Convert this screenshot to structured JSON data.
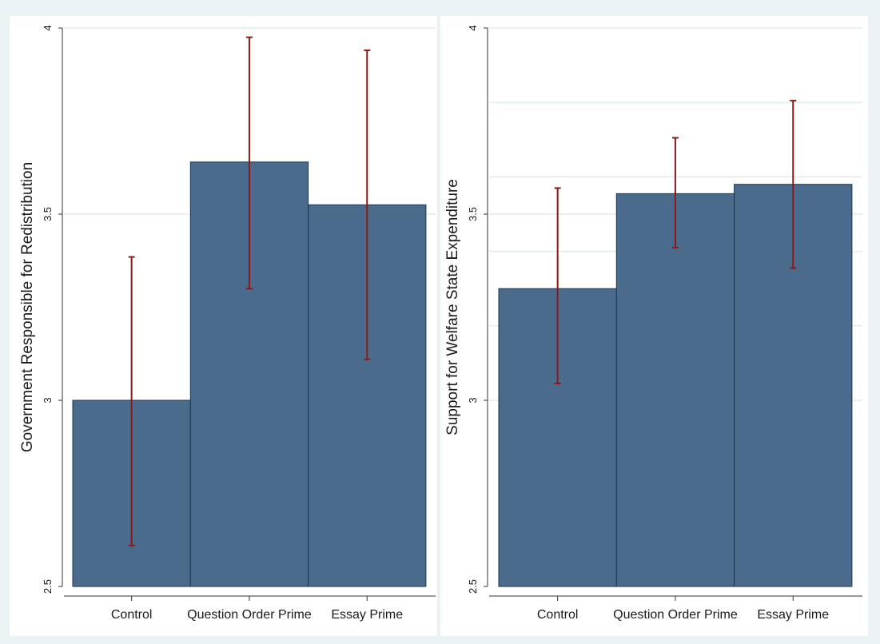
{
  "chart_data": [
    {
      "type": "bar",
      "ylabel": "Government Responsible for Redistribution",
      "xlabel": "",
      "categories": [
        "Control",
        "Question Order Prime",
        "Essay Prime"
      ],
      "values": [
        3.0,
        3.64,
        3.525
      ],
      "error_low": [
        2.61,
        3.3,
        3.11
      ],
      "error_high": [
        3.385,
        3.975,
        3.94
      ],
      "ylim": [
        2.5,
        4.0
      ],
      "yticks": [
        "2.5",
        "3",
        "3.5",
        "4"
      ],
      "ytick_values": [
        2.5,
        3.0,
        3.5,
        4.0
      ],
      "grid_values": [
        3.5,
        4.0
      ],
      "bar_color": "#4a6b8c",
      "bar_edge_color": "#1a3550",
      "error_color": "#8b1a1a"
    },
    {
      "type": "bar",
      "ylabel": "Support for Welfare State Expenditure",
      "xlabel": "",
      "categories": [
        "Control",
        "Question Order Prime",
        "Essay Prime"
      ],
      "values": [
        3.3,
        3.555,
        3.58
      ],
      "error_low": [
        3.045,
        3.41,
        3.355
      ],
      "error_high": [
        3.57,
        3.705,
        3.805
      ],
      "ylim": [
        2.5,
        4.0
      ],
      "yticks": [
        "2.5",
        "3",
        "3.5",
        "4"
      ],
      "ytick_values": [
        2.5,
        3.0,
        3.5,
        4.0
      ],
      "grid_values": [
        3.0,
        3.2,
        3.4,
        3.5,
        3.6,
        3.8,
        4.0
      ],
      "bar_color": "#4a6b8c",
      "bar_edge_color": "#1a3550",
      "error_color": "#8b1a1a"
    }
  ]
}
